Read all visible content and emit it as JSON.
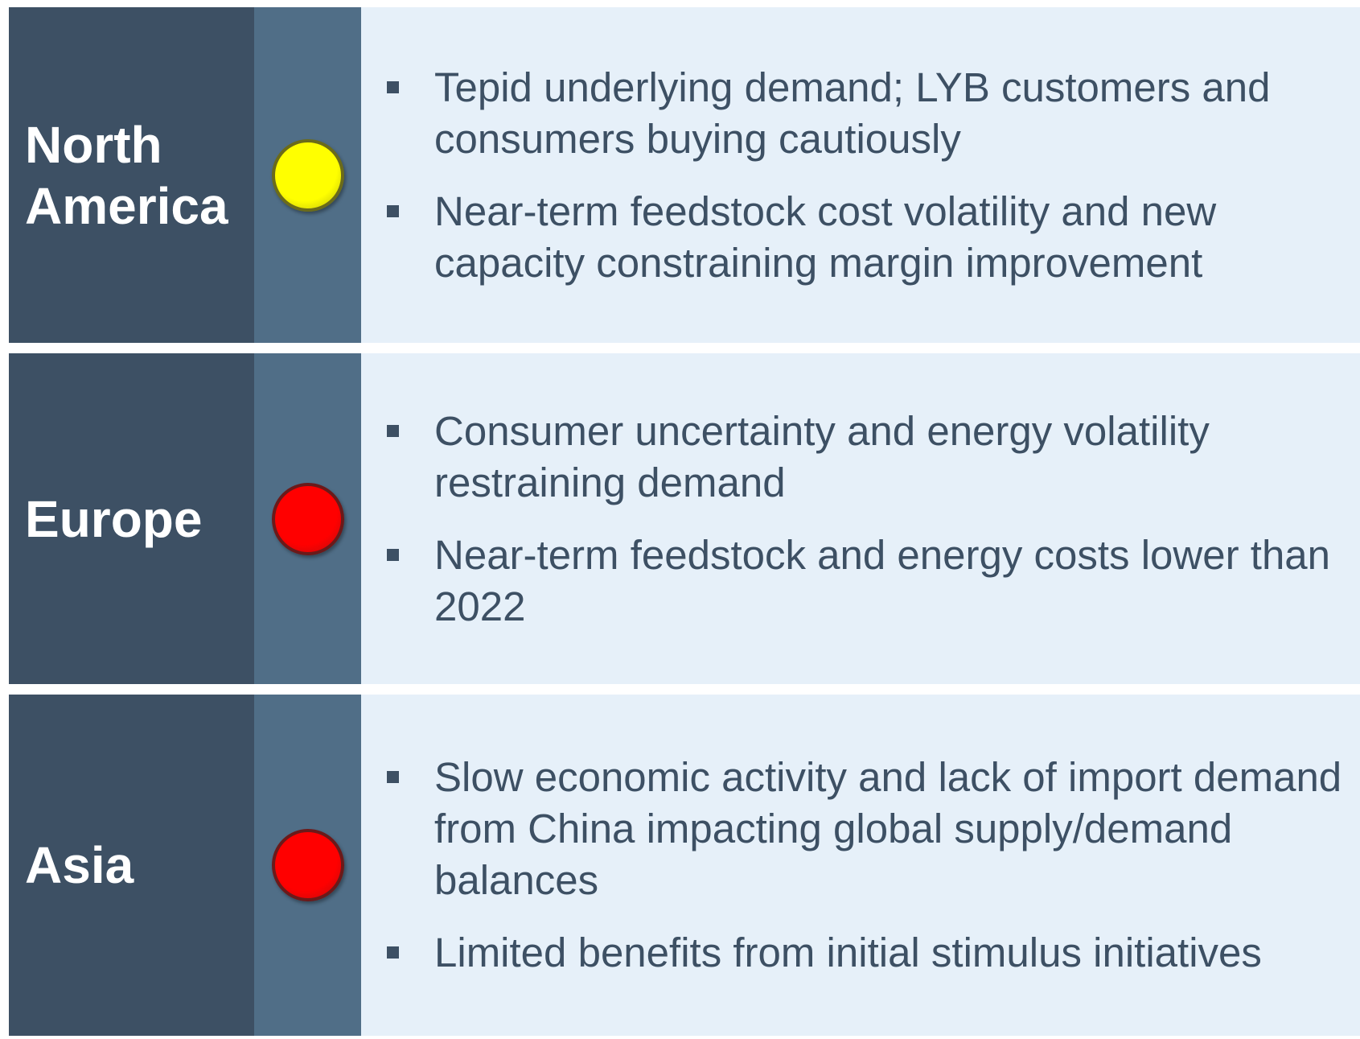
{
  "rows": [
    {
      "region": "North America",
      "status_color": "#ffff00",
      "status_border": "#6b6b1a",
      "bullets": [
        "Tepid underlying demand; LYB customers and consumers buying cautiously",
        "Near-term feedstock cost volatility and new capacity constraining margin improvement"
      ]
    },
    {
      "region": "Europe",
      "status_color": "#ff0000",
      "status_border": "#6b1a1a",
      "bullets": [
        "Consumer uncertainty and energy volatility restraining demand",
        "Near-term feedstock and energy costs lower than 2022"
      ]
    },
    {
      "region": "Asia",
      "status_color": "#ff0000",
      "status_border": "#6b1a1a",
      "bullets": [
        "Slow economic activity and lack of import demand from China impacting global supply/demand balances",
        "Limited benefits from initial stimulus initiatives"
      ]
    }
  ]
}
